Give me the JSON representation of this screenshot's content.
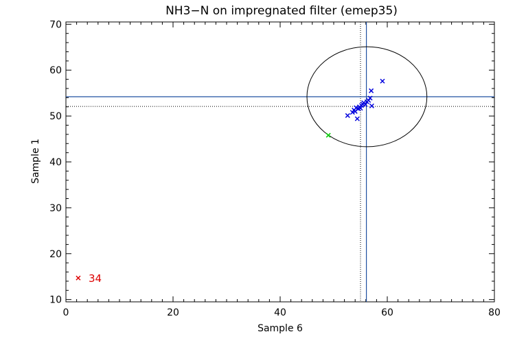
{
  "chart_data": {
    "type": "scatter",
    "title": "NH3−N on impregnated filter (emep35)",
    "xlabel": "Sample 6",
    "ylabel": "Sample 1",
    "xlim": [
      0,
      80
    ],
    "ylim": [
      9.5,
      70.5
    ],
    "x_ticks": [
      0,
      20,
      40,
      60,
      80
    ],
    "y_ticks": [
      10,
      20,
      30,
      40,
      50,
      60,
      70
    ],
    "grid": false,
    "colors": {
      "main_points": "#0000dd",
      "highlight_point": "#00cc00",
      "outlier_point": "#dd0000",
      "reference_lines": "#1f4fa0",
      "median_lines": "#000000",
      "ellipse": "#000000"
    },
    "reference_lines": {
      "x": 56.1,
      "y": 54.2
    },
    "median_lines": {
      "x": 55.0,
      "y": 52.1
    },
    "ellipse": {
      "cx": 56.2,
      "cy": 54.2,
      "rx": 11.2,
      "ry": 10.9
    },
    "series": [
      {
        "marker": "x",
        "color": "#0000dd",
        "points": [
          [
            52.6,
            50.1
          ],
          [
            53.5,
            50.8
          ],
          [
            53.8,
            51.3
          ],
          [
            54.0,
            51.0
          ],
          [
            54.2,
            51.8
          ],
          [
            54.4,
            49.4
          ],
          [
            54.6,
            51.6
          ],
          [
            54.8,
            52.0
          ],
          [
            55.0,
            51.7
          ],
          [
            55.2,
            52.3
          ],
          [
            55.4,
            52.6
          ],
          [
            55.6,
            52.9
          ],
          [
            55.9,
            52.5
          ],
          [
            56.2,
            53.1
          ],
          [
            56.5,
            53.4
          ],
          [
            56.8,
            53.9
          ],
          [
            57.0,
            55.5
          ],
          [
            57.1,
            52.2
          ],
          [
            59.1,
            57.6
          ]
        ]
      },
      {
        "marker": "x",
        "color": "#00cc00",
        "points": [
          [
            49.0,
            45.8
          ]
        ]
      },
      {
        "marker": "x",
        "color": "#dd0000",
        "points": [
          [
            2.3,
            14.7
          ]
        ],
        "point_labels": [
          "34"
        ]
      }
    ]
  }
}
